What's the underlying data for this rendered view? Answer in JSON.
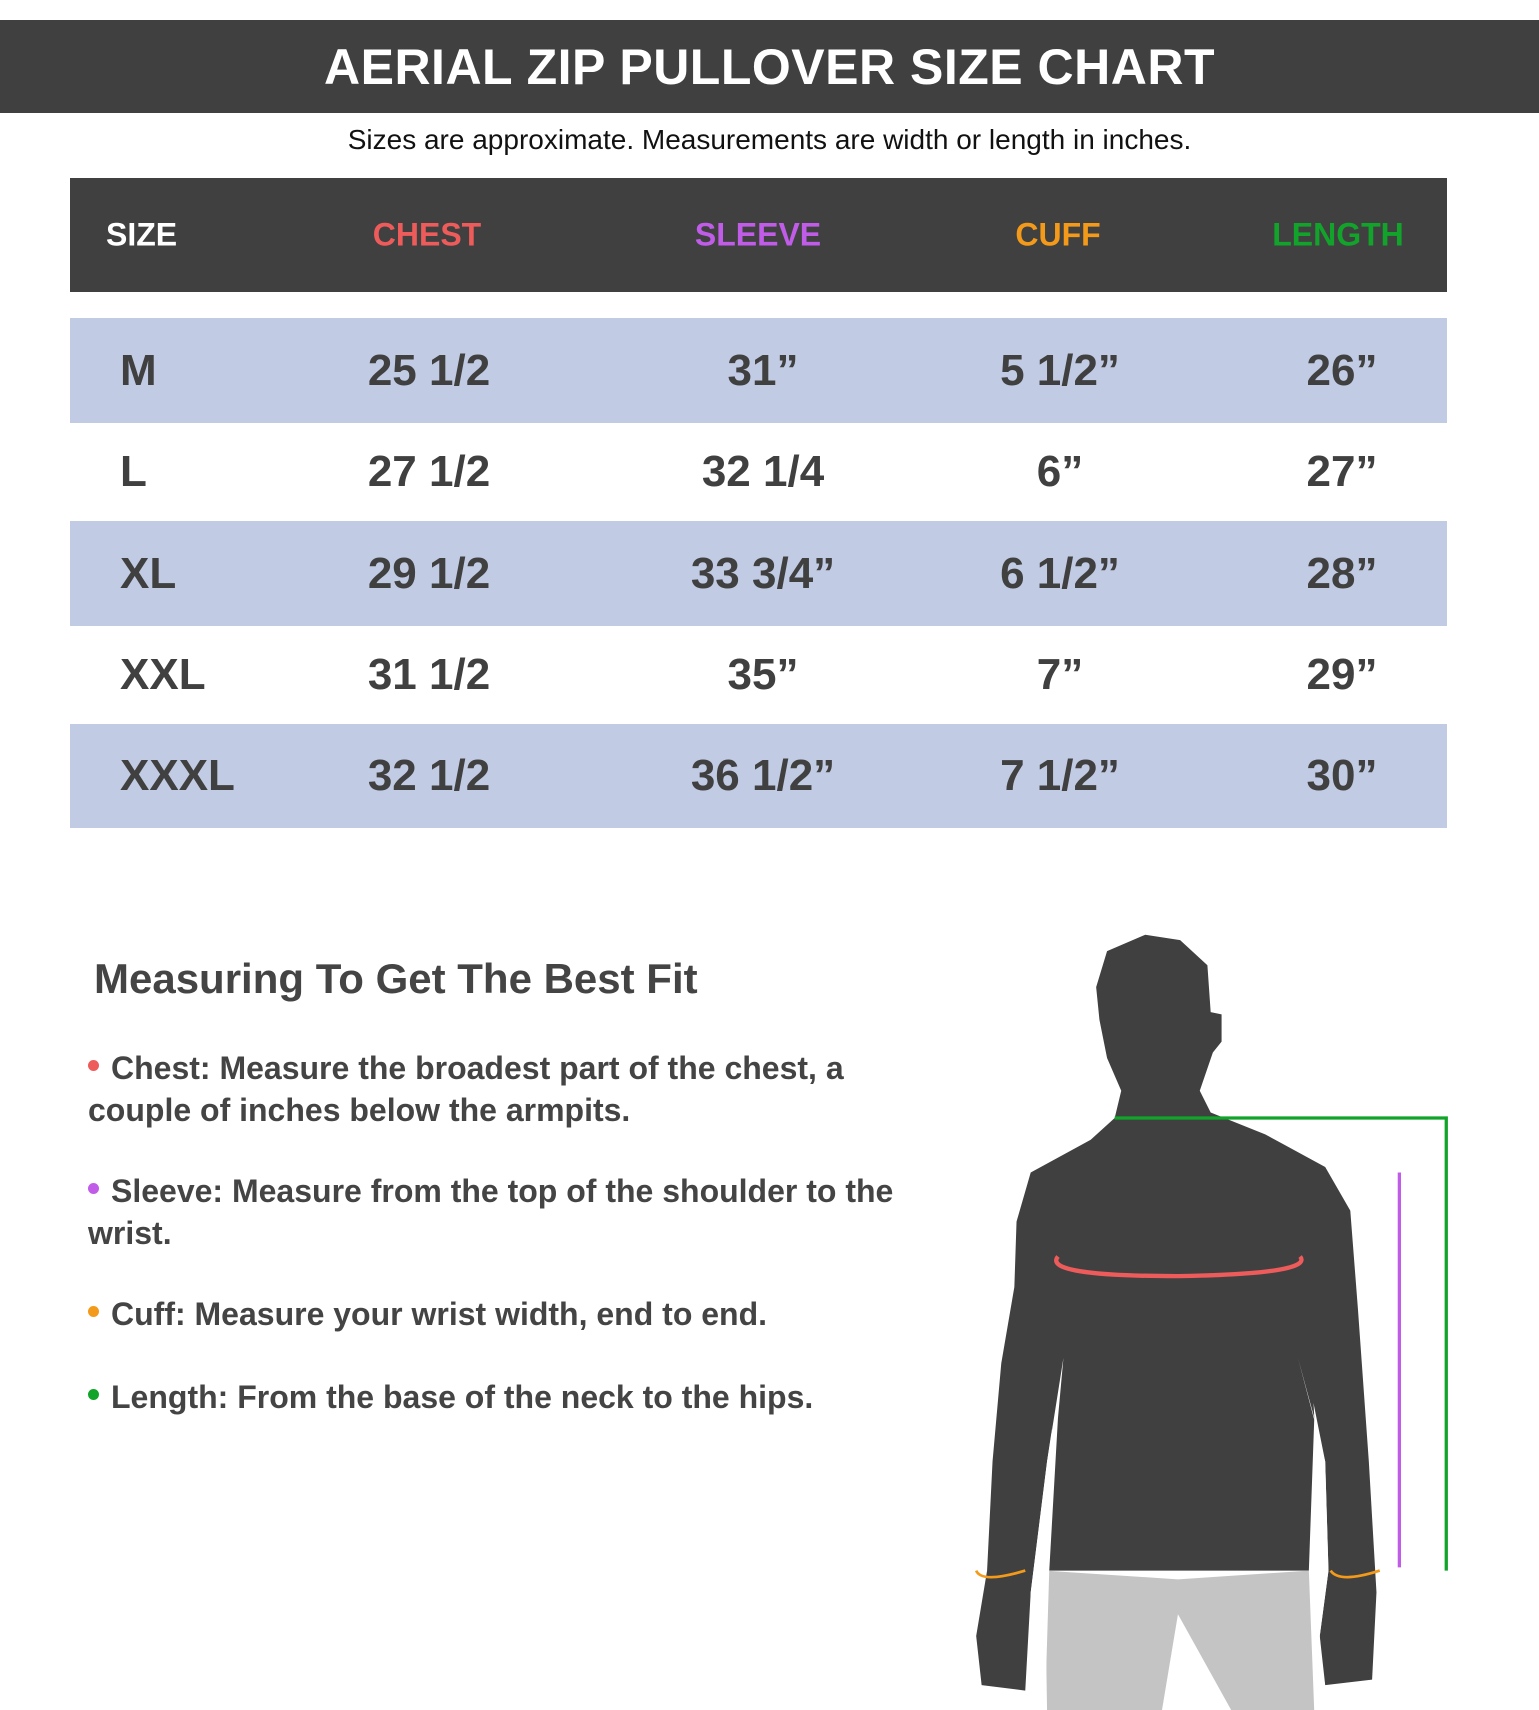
{
  "title": "AERIAL ZIP PULLOVER SIZE CHART",
  "subtitle": "Sizes are approximate. Measurements are width or length in inches.",
  "colors": {
    "chest": "#ee5b5b",
    "sleeve": "#c05ce8",
    "cuff": "#f39a1a",
    "length": "#12a32a",
    "header_bg": "#404040",
    "row_shade": "#c1cbe3"
  },
  "table": {
    "headers": [
      "SIZE",
      "CHEST",
      "SLEEVE",
      "CUFF",
      "LENGTH"
    ],
    "rows": [
      [
        "M",
        "25 1/2",
        "31”",
        "5 1/2”",
        "26”"
      ],
      [
        "L",
        "27 1/2",
        "32 1/4",
        "6”",
        "27”"
      ],
      [
        "XL",
        "29 1/2",
        "33 3/4”",
        "6 1/2”",
        "28”"
      ],
      [
        "XXL",
        "31 1/2",
        "35”",
        "7”",
        "29”"
      ],
      [
        "XXXL",
        "32 1/2",
        "36 1/2”",
        "7 1/2”",
        "30”"
      ]
    ]
  },
  "guide": {
    "heading": "Measuring To Get The Best Fit",
    "items": [
      "Chest: Measure the broadest part of the chest, a couple of inches below the armpits.",
      "Sleeve: Measure from the top of the shoulder to the wrist.",
      "Cuff: Measure your wrist width, end to end.",
      "Length: From the base of the neck to the hips."
    ]
  },
  "figure": {
    "icon": "male-silhouette-measurement-diagram"
  }
}
